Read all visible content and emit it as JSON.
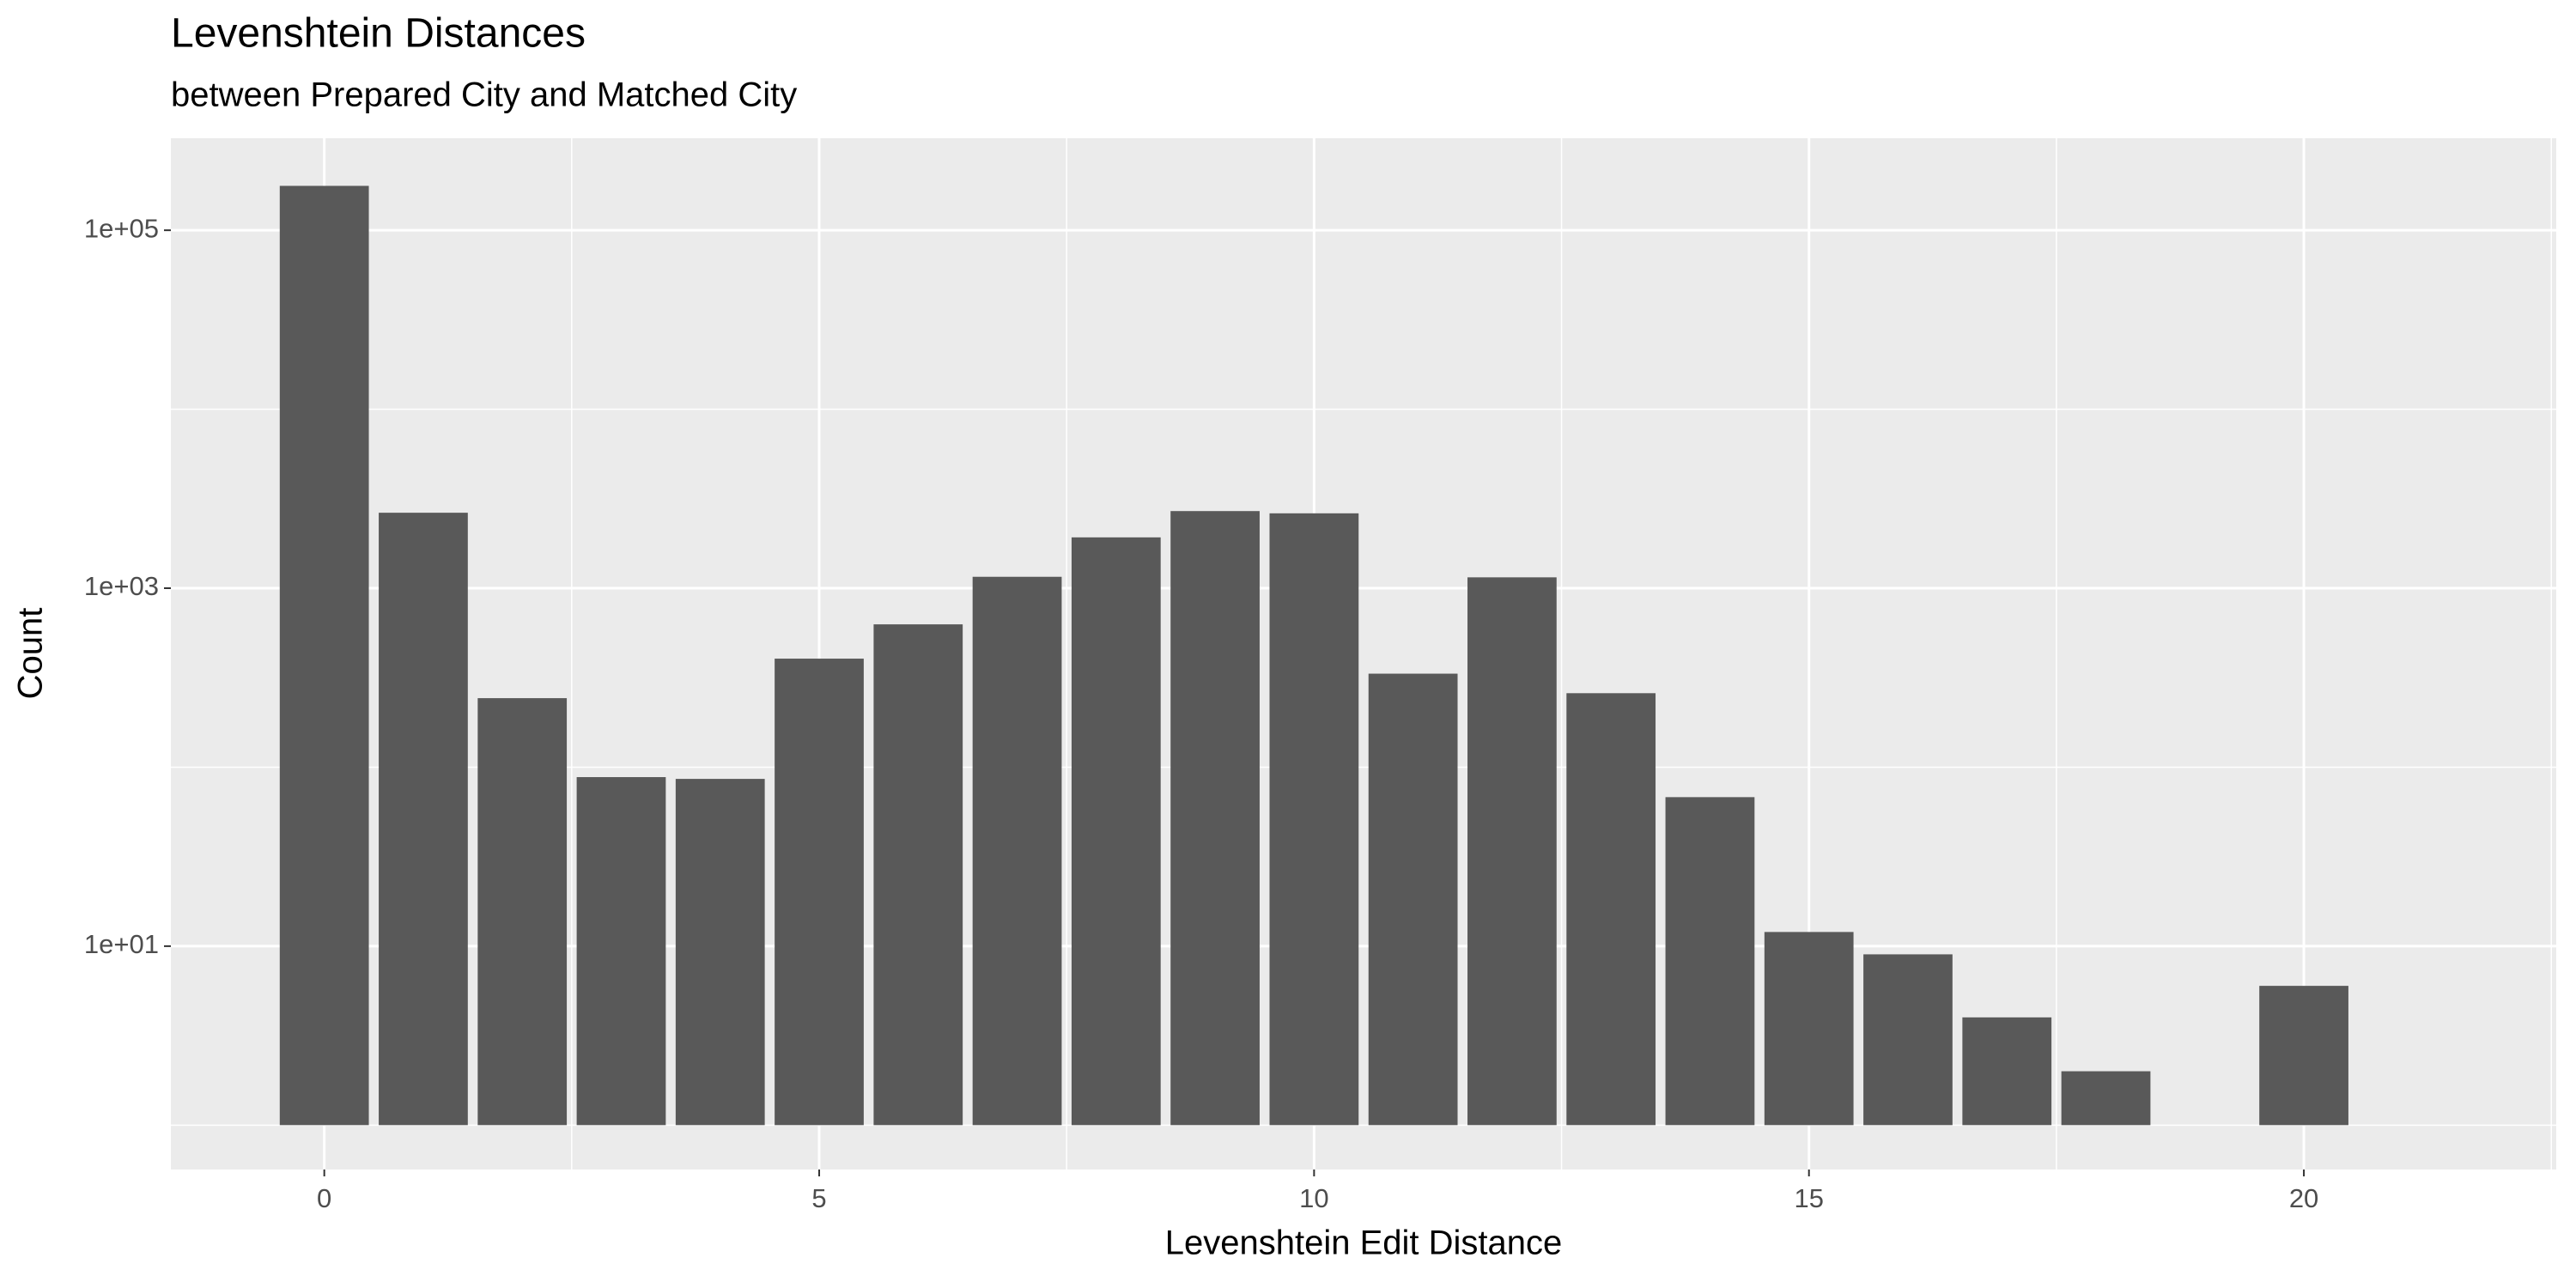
{
  "chart_data": {
    "type": "bar",
    "title": "Levenshtein Distances",
    "subtitle": "between Prepared City and Matched City",
    "x_label": "Levenshtein Edit Distance",
    "y_label": "Count",
    "x": [
      0,
      1,
      2,
      3,
      4,
      5,
      6,
      7,
      8,
      9,
      10,
      11,
      12,
      13,
      14,
      15,
      16,
      17,
      18,
      20
    ],
    "values": [
      177000,
      2640,
      243,
      88,
      86,
      404,
      628,
      1158,
      1923,
      2697,
      2620,
      333,
      1150,
      259,
      68,
      12,
      9,
      4,
      2,
      6
    ],
    "color": "#595959",
    "xlim": [
      -1.55,
      22.55
    ],
    "xticks": [
      0,
      5,
      10,
      15,
      20
    ],
    "ylim": [
      0.565,
      326600
    ],
    "y_log": true,
    "yticks": [
      {
        "value": 10,
        "label": "1e+01"
      },
      {
        "value": 1000,
        "label": "1e+03"
      },
      {
        "value": 100000,
        "label": "1e+05"
      }
    ],
    "grid": true
  }
}
